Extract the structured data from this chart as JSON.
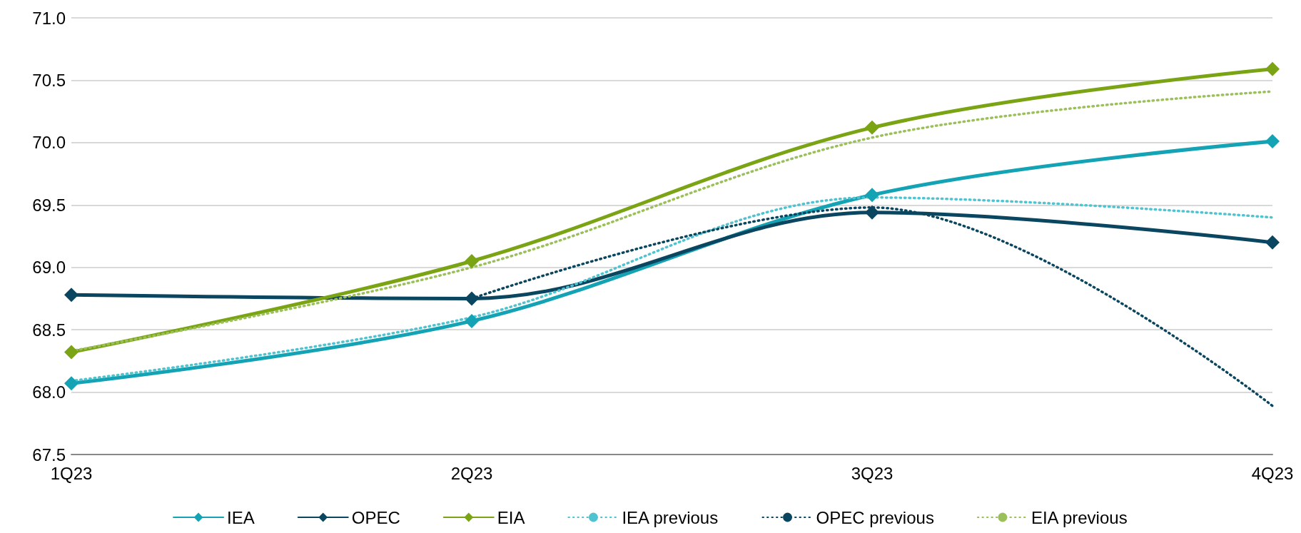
{
  "chart_data": {
    "type": "line",
    "categories": [
      "1Q23",
      "2Q23",
      "3Q23",
      "4Q23"
    ],
    "ylim": [
      67.5,
      71.0
    ],
    "yticks": [
      {
        "value": 67.5,
        "label": "67.5"
      },
      {
        "value": 68,
        "label": "68.0"
      },
      {
        "value": 68.5,
        "label": "68.5"
      },
      {
        "value": 69,
        "label": "69.0"
      },
      {
        "value": 69.5,
        "label": "69.5"
      },
      {
        "value": 70,
        "label": "70.0"
      },
      {
        "value": 70.5,
        "label": "70.5"
      },
      {
        "value": 71,
        "label": "71.0"
      }
    ],
    "grid": "y",
    "legend": "bottom",
    "series": [
      {
        "name": "IEA",
        "color": "#13a3b4",
        "values": [
          68.07,
          68.57,
          69.58,
          70.01
        ],
        "marker": "diamond",
        "line_style": "solid"
      },
      {
        "name": "OPEC",
        "color": "#0b4660",
        "values": [
          68.78,
          68.75,
          69.44,
          69.2
        ],
        "marker": "diamond",
        "line_style": "solid"
      },
      {
        "name": "EIA",
        "color": "#7aa414",
        "values": [
          68.32,
          69.05,
          70.12,
          70.59
        ],
        "marker": "diamond",
        "line_style": "solid"
      },
      {
        "name": "IEA previous",
        "color": "#4fc3cf",
        "values": [
          68.09,
          68.6,
          69.56,
          69.4
        ],
        "marker": "none",
        "line_style": "dotted"
      },
      {
        "name": "OPEC previous",
        "color": "#0b4660",
        "values": [
          null,
          68.75,
          69.48,
          67.89
        ],
        "marker": "none",
        "line_style": "dotted"
      },
      {
        "name": "EIA previous",
        "color": "#9bc05a",
        "values": [
          68.33,
          69.0,
          70.04,
          70.41
        ],
        "marker": "none",
        "line_style": "dotted"
      }
    ]
  }
}
